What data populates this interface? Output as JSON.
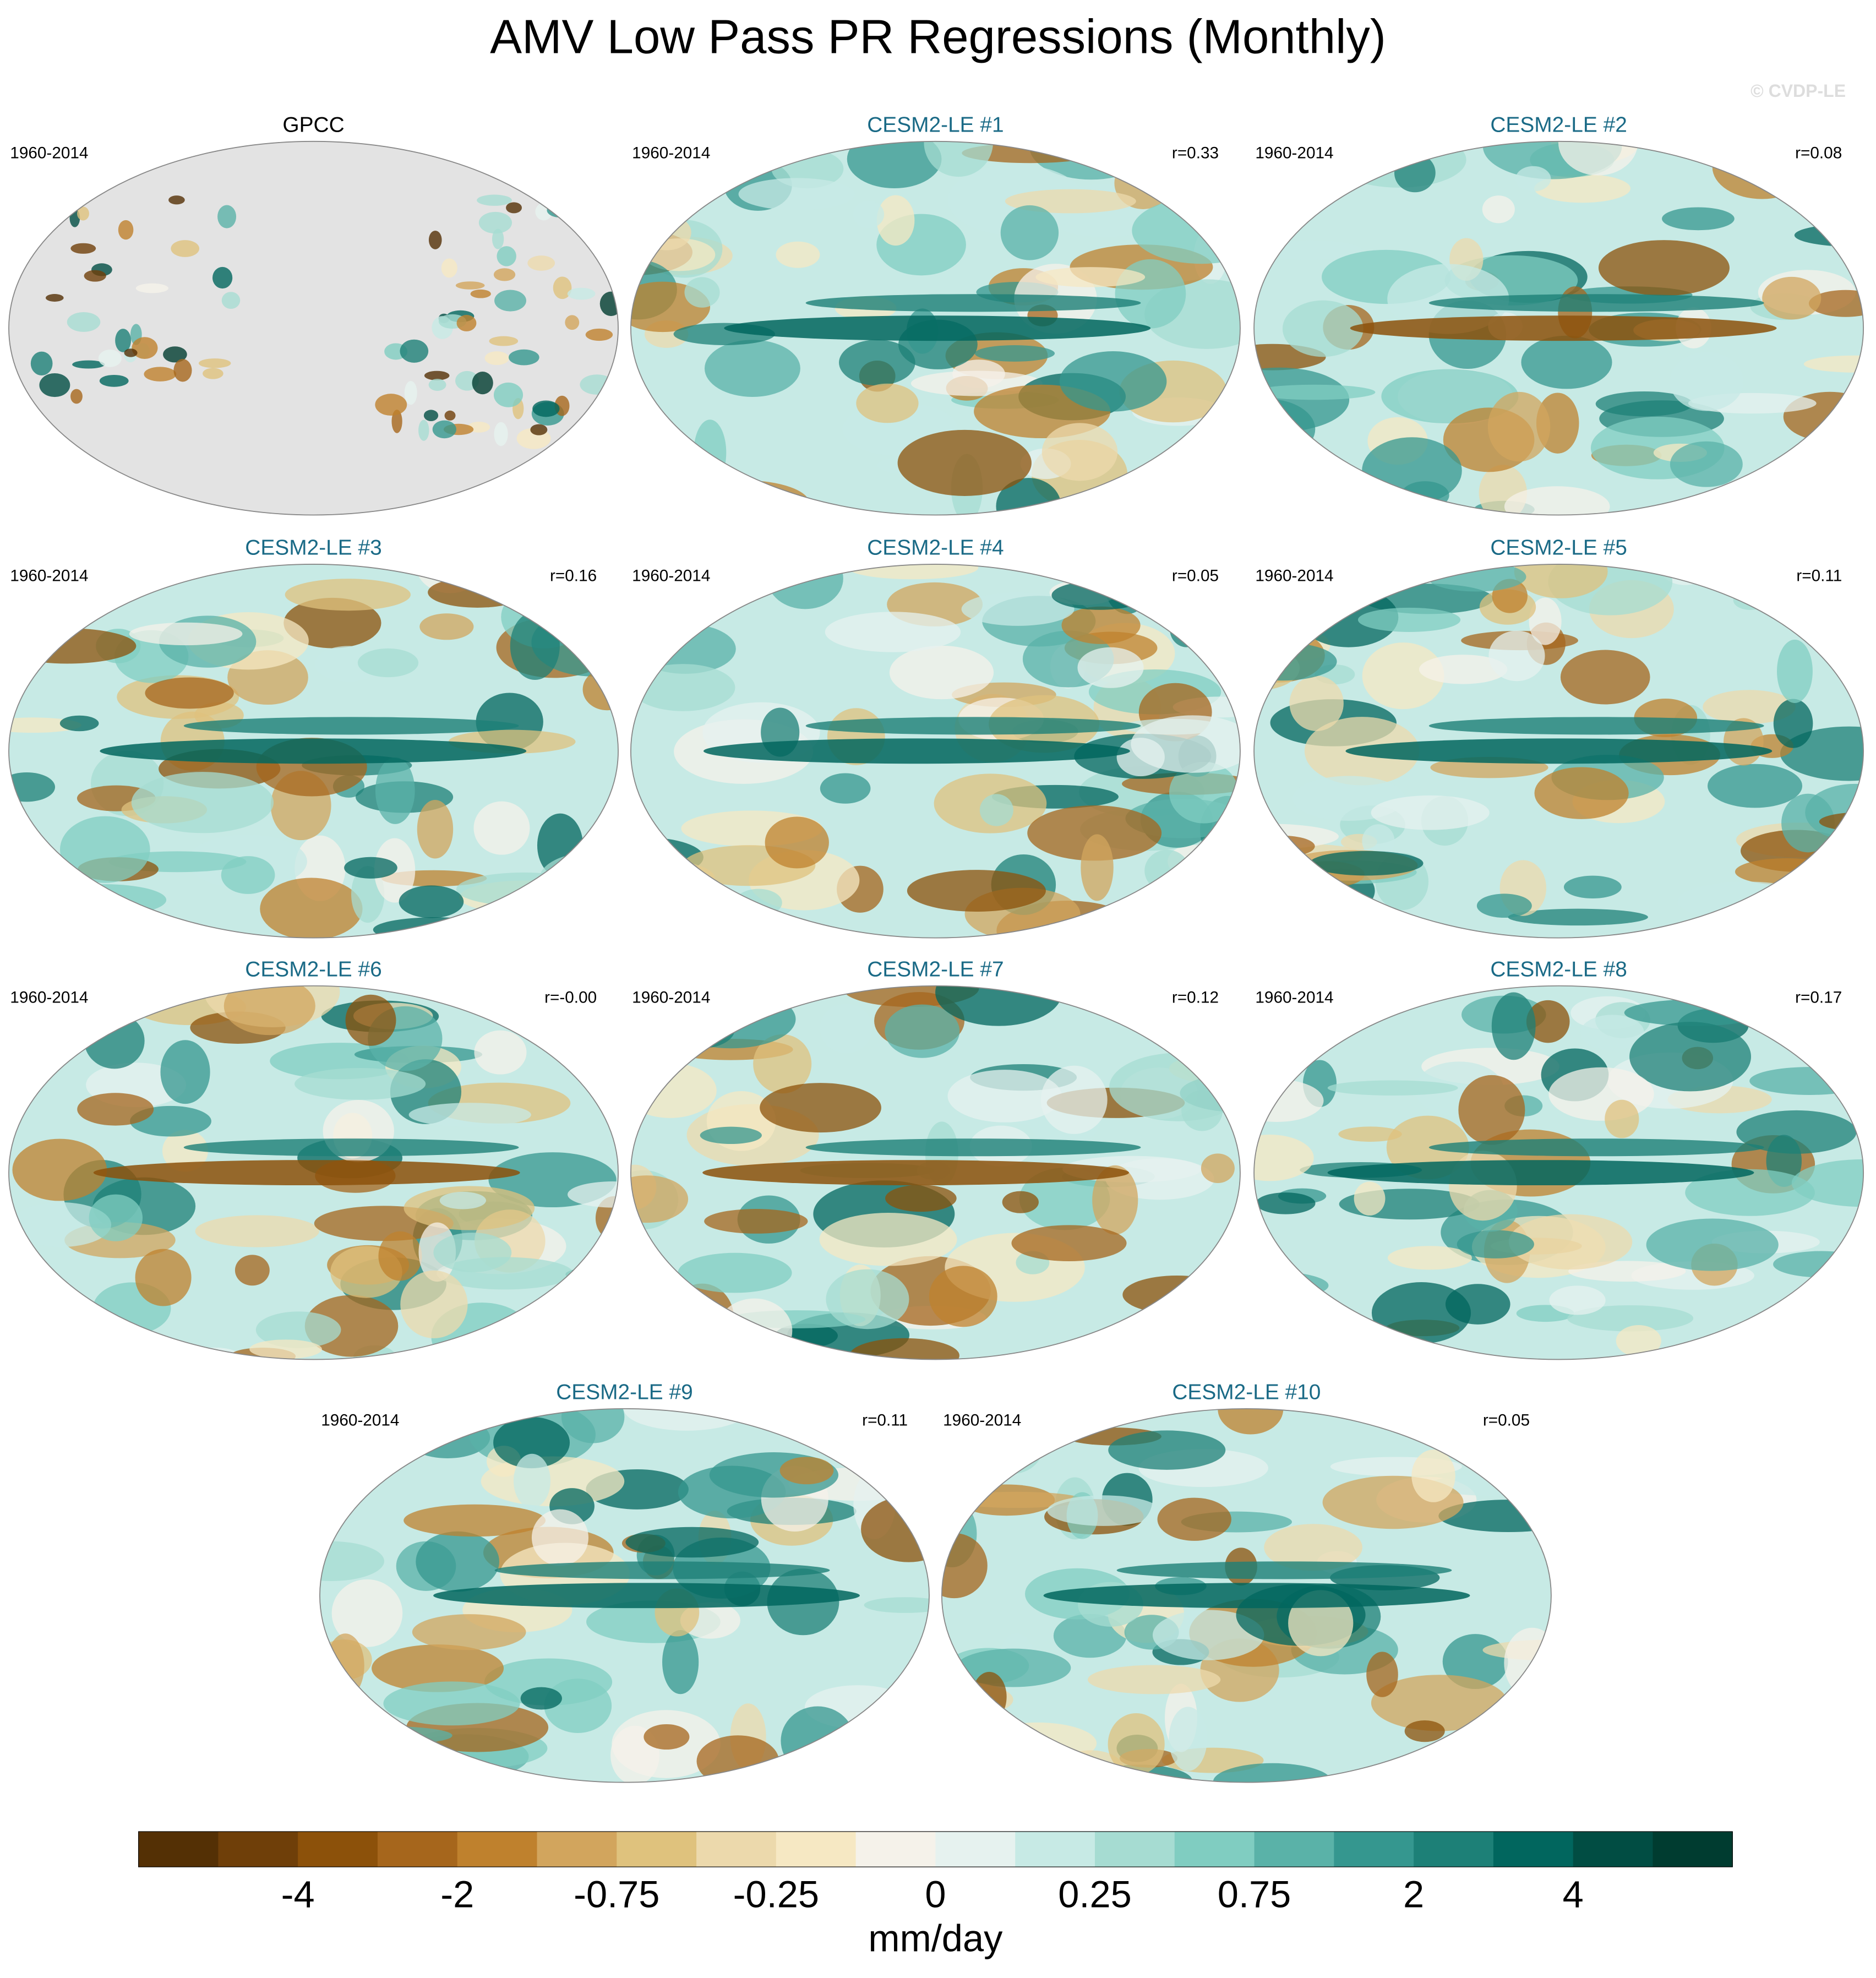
{
  "title": "AMV Low Pass PR Regressions (Monthly)",
  "watermark": "© CVDP-LE",
  "panels": [
    {
      "title": "GPCC",
      "period": "1960-2014"
    },
    {
      "title": "CESM2-LE #1",
      "period": "1960-2014",
      "r": "r=0.33"
    },
    {
      "title": "CESM2-LE #2",
      "period": "1960-2014",
      "r": "r=0.08"
    },
    {
      "title": "CESM2-LE #3",
      "period": "1960-2014",
      "r": "r=0.16"
    },
    {
      "title": "CESM2-LE #4",
      "period": "1960-2014",
      "r": "r=0.05"
    },
    {
      "title": "CESM2-LE #5",
      "period": "1960-2014",
      "r": "r=0.11"
    },
    {
      "title": "CESM2-LE #6",
      "period": "1960-2014",
      "r": "r=-0.00"
    },
    {
      "title": "CESM2-LE #7",
      "period": "1960-2014",
      "r": "r=0.12"
    },
    {
      "title": "CESM2-LE #8",
      "period": "1960-2014",
      "r": "r=0.17"
    },
    {
      "title": "CESM2-LE #9",
      "period": "1960-2014",
      "r": "r=0.11"
    },
    {
      "title": "CESM2-LE #10",
      "period": "1960-2014",
      "r": "r=0.05"
    }
  ],
  "colorbar": {
    "colors": [
      "#543005",
      "#6f3f09",
      "#8c510a",
      "#a6661c",
      "#bf812d",
      "#d2a55d",
      "#dfc27d",
      "#ecd9ac",
      "#f6e8c3",
      "#f5f2ea",
      "#e6f2ef",
      "#c7eae5",
      "#a6dcd2",
      "#80cdc1",
      "#5ab2a8",
      "#35978f",
      "#1d8077",
      "#01665e",
      "#014d43",
      "#003c30"
    ],
    "tick_labels": [
      "-4",
      "-2",
      "-0.75",
      "-0.25",
      "0",
      "0.25",
      "0.75",
      "2",
      "4"
    ],
    "unit": "mm/day"
  }
}
